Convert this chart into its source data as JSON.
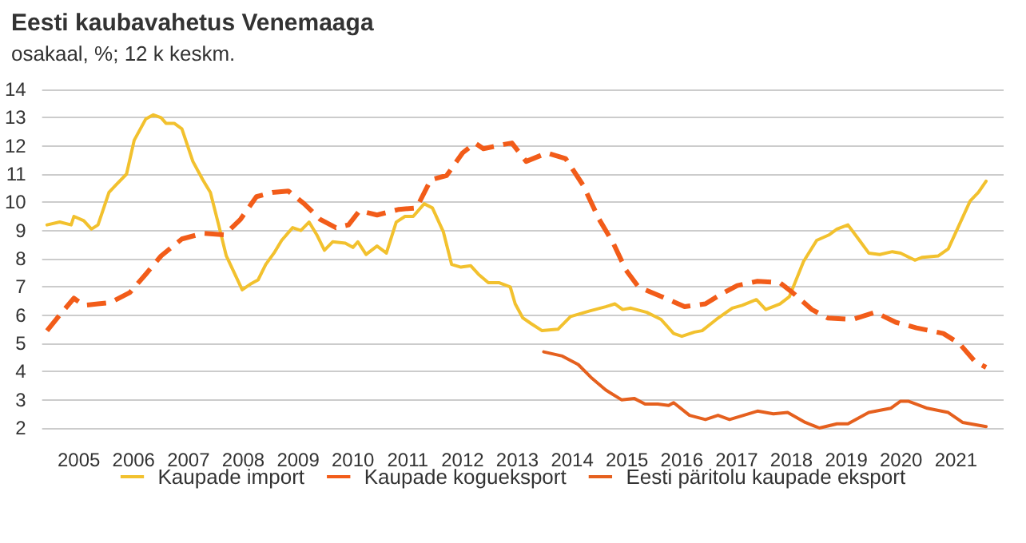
{
  "chart_data": {
    "type": "line",
    "title": "Eesti kaubavahetus Venemaaga",
    "subtitle": "osakaal, %; 12 k keskm.",
    "xlim": [
      2004.33,
      2021.87
    ],
    "xticks": [
      2005,
      2006,
      2007,
      2008,
      2009,
      2010,
      2011,
      2012,
      2013,
      2014,
      2015,
      2016,
      2017,
      2018,
      2019,
      2020,
      2021
    ],
    "ylim": [
      2,
      14
    ],
    "yticks": [
      2,
      3,
      4,
      5,
      6,
      7,
      8,
      9,
      10,
      11,
      12,
      13,
      14
    ],
    "grid": "y",
    "legend": "bottom",
    "marker": "none",
    "series": [
      {
        "name": "Kaupade import",
        "color": "#f2c12e",
        "line_style": "solid",
        "x": [
          2004.42,
          2004.65,
          2004.86,
          2004.91,
          2005.09,
          2005.23,
          2005.35,
          2005.55,
          2005.67,
          2005.87,
          2006.01,
          2006.22,
          2006.36,
          2006.5,
          2006.59,
          2006.74,
          2006.88,
          2007.08,
          2007.26,
          2007.4,
          2007.55,
          2007.69,
          2007.98,
          2008.13,
          2008.27,
          2008.41,
          2008.56,
          2008.7,
          2008.9,
          2009.05,
          2009.2,
          2009.34,
          2009.48,
          2009.63,
          2009.86,
          2010.0,
          2010.09,
          2010.24,
          2010.44,
          2010.61,
          2010.79,
          2010.95,
          2011.1,
          2011.3,
          2011.45,
          2011.65,
          2011.8,
          2011.97,
          2012.15,
          2012.29,
          2012.47,
          2012.67,
          2012.87,
          2012.96,
          2013.1,
          2013.25,
          2013.45,
          2013.74,
          2013.97,
          2014.32,
          2014.61,
          2014.78,
          2014.92,
          2015.07,
          2015.36,
          2015.62,
          2015.85,
          2016.0,
          2016.23,
          2016.37,
          2016.63,
          2016.92,
          2017.1,
          2017.36,
          2017.53,
          2017.79,
          2017.96,
          2018.22,
          2018.46,
          2018.69,
          2018.83,
          2019.03,
          2019.24,
          2019.41,
          2019.61,
          2019.84,
          2019.99,
          2020.25,
          2020.39,
          2020.68,
          2020.86,
          2021.06,
          2021.26,
          2021.41,
          2021.55
        ],
        "values": [
          9.2,
          9.3,
          9.2,
          9.5,
          9.35,
          9.05,
          9.2,
          10.35,
          10.6,
          11.0,
          12.2,
          12.95,
          13.1,
          13.0,
          12.8,
          12.8,
          12.6,
          11.45,
          10.8,
          10.35,
          9.2,
          8.1,
          6.9,
          7.1,
          7.25,
          7.8,
          8.2,
          8.65,
          9.1,
          9.0,
          9.3,
          8.85,
          8.3,
          8.6,
          8.55,
          8.4,
          8.6,
          8.15,
          8.45,
          8.2,
          9.3,
          9.5,
          9.5,
          9.95,
          9.8,
          8.95,
          7.8,
          7.7,
          7.75,
          7.45,
          7.15,
          7.15,
          7.0,
          6.4,
          5.9,
          5.7,
          5.45,
          5.5,
          5.95,
          6.15,
          6.3,
          6.4,
          6.2,
          6.25,
          6.1,
          5.85,
          5.35,
          5.25,
          5.4,
          5.45,
          5.85,
          6.25,
          6.35,
          6.55,
          6.2,
          6.4,
          6.65,
          7.9,
          8.65,
          8.85,
          9.05,
          9.2,
          8.65,
          8.2,
          8.15,
          8.25,
          8.2,
          7.95,
          8.05,
          8.1,
          8.35,
          9.2,
          10.05,
          10.35,
          10.75
        ]
      },
      {
        "name": "Kaupade kogueksport",
        "color": "#f25c19",
        "line_style": "dashed",
        "x": [
          2004.42,
          2004.65,
          2004.91,
          2005.09,
          2005.35,
          2005.58,
          2005.93,
          2006.22,
          2006.5,
          2006.88,
          2007.26,
          2007.66,
          2007.95,
          2008.24,
          2008.53,
          2008.82,
          2009.11,
          2009.4,
          2009.69,
          2009.92,
          2010.12,
          2010.44,
          2010.84,
          2011.16,
          2011.42,
          2011.71,
          2012.0,
          2012.23,
          2012.38,
          2012.75,
          2012.9,
          2013.16,
          2013.54,
          2013.88,
          2014.2,
          2014.49,
          2014.75,
          2014.98,
          2015.21,
          2015.64,
          2016.05,
          2016.43,
          2016.72,
          2017.01,
          2017.38,
          2017.79,
          2018.02,
          2018.37,
          2018.66,
          2019.12,
          2019.53,
          2019.9,
          2020.28,
          2020.77,
          2021.06,
          2021.35,
          2021.55
        ],
        "values": [
          5.45,
          6.0,
          6.6,
          6.35,
          6.4,
          6.45,
          6.8,
          7.45,
          8.1,
          8.7,
          8.9,
          8.85,
          9.4,
          10.2,
          10.35,
          10.4,
          9.95,
          9.4,
          9.1,
          9.2,
          9.7,
          9.55,
          9.75,
          9.8,
          10.8,
          10.95,
          11.75,
          12.1,
          11.9,
          12.05,
          12.1,
          11.45,
          11.75,
          11.55,
          10.6,
          9.4,
          8.55,
          7.6,
          7.0,
          6.65,
          6.3,
          6.4,
          6.75,
          7.05,
          7.2,
          7.15,
          6.8,
          6.2,
          5.9,
          5.85,
          6.1,
          5.75,
          5.55,
          5.35,
          5.0,
          4.35,
          4.15
        ]
      },
      {
        "name": "Eesti päritolu kaupade eksport",
        "color": "#e5601e",
        "line_style": "solid",
        "x": [
          2013.48,
          2013.82,
          2014.11,
          2014.34,
          2014.61,
          2014.9,
          2015.13,
          2015.33,
          2015.56,
          2015.76,
          2015.85,
          2016.14,
          2016.43,
          2016.66,
          2016.87,
          2017.38,
          2017.67,
          2017.93,
          2018.25,
          2018.51,
          2018.83,
          2019.03,
          2019.41,
          2019.81,
          2019.99,
          2020.13,
          2020.48,
          2020.86,
          2021.12,
          2021.55
        ],
        "values": [
          4.7,
          4.55,
          4.25,
          3.8,
          3.35,
          3.0,
          3.05,
          2.85,
          2.85,
          2.8,
          2.9,
          2.45,
          2.3,
          2.45,
          2.3,
          2.6,
          2.5,
          2.55,
          2.2,
          2.0,
          2.15,
          2.15,
          2.55,
          2.7,
          2.95,
          2.95,
          2.7,
          2.55,
          2.2,
          2.05
        ]
      }
    ]
  }
}
